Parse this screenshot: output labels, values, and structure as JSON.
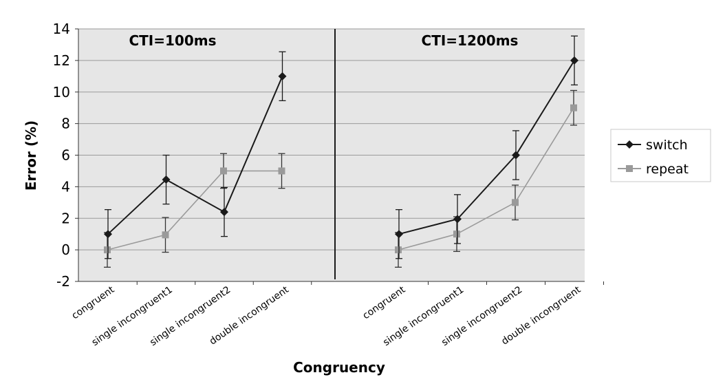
{
  "chart_data": {
    "type": "line",
    "xlabel": "Congruency",
    "ylabel": "Error (%)",
    "ylim": [
      -2,
      14
    ],
    "yticks": [
      -2,
      0,
      2,
      4,
      6,
      8,
      10,
      12,
      14
    ],
    "grid": true,
    "legend_position": "right",
    "colors": {
      "switch": "#1a1a1a",
      "repeat": "#9a9a9a",
      "plot_bg": "#e6e6e6"
    },
    "panels": [
      {
        "title": "CTI=100ms",
        "categories": [
          "congruent",
          "single incongruent1",
          "single incongruent2",
          "double incongruent"
        ],
        "series": [
          {
            "name": "switch",
            "values": [
              1.0,
              4.45,
              2.4,
              11.0
            ],
            "errors": [
              1.55,
              1.55,
              1.55,
              1.55
            ]
          },
          {
            "name": "repeat",
            "values": [
              0.0,
              0.95,
              5.0,
              5.0
            ],
            "errors": [
              1.1,
              1.1,
              1.1,
              1.1
            ]
          }
        ]
      },
      {
        "title": "CTI=1200ms",
        "categories": [
          "congruent",
          "single incongruent1",
          "single incongruent2",
          "double incongruent"
        ],
        "series": [
          {
            "name": "switch",
            "values": [
              1.0,
              1.95,
              6.0,
              12.0
            ],
            "errors": [
              1.55,
              1.55,
              1.55,
              1.55
            ]
          },
          {
            "name": "repeat",
            "values": [
              0.0,
              1.0,
              3.0,
              9.0
            ],
            "errors": [
              1.1,
              1.1,
              1.1,
              1.1
            ]
          }
        ]
      }
    ]
  }
}
